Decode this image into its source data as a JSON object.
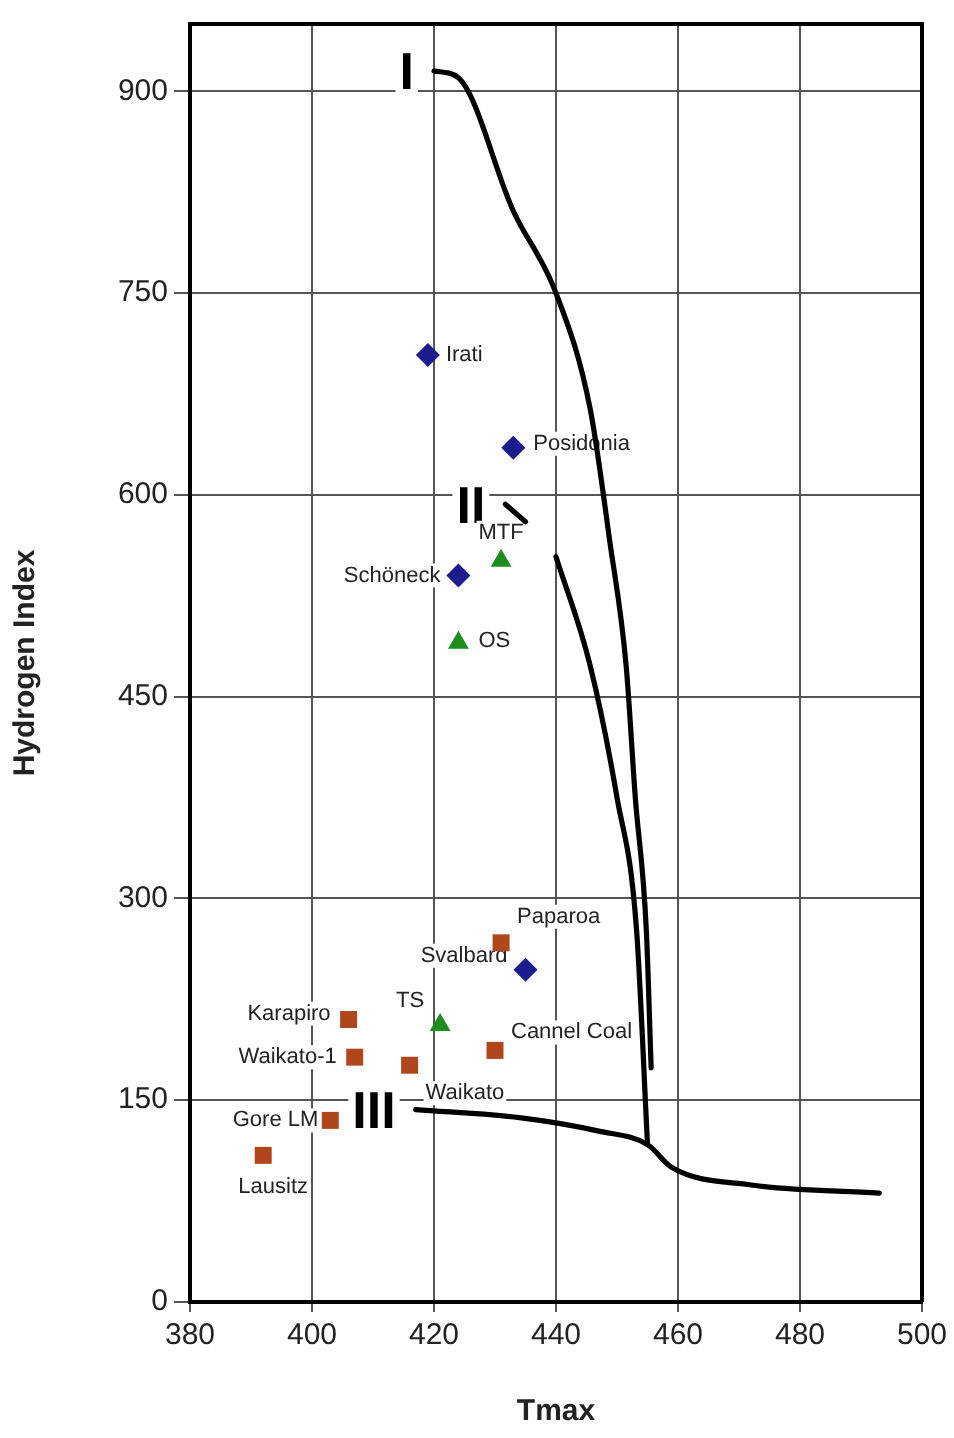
{
  "chart_data": {
    "type": "scatter",
    "xlabel": "Tmax",
    "ylabel": "Hydrogen Index",
    "xlim": [
      380,
      500
    ],
    "xticks": [
      380,
      400,
      420,
      440,
      460,
      480,
      500
    ],
    "ylim": [
      0,
      950
    ],
    "yticks": [
      0,
      150,
      300,
      450,
      600,
      750,
      900
    ],
    "grid": true,
    "legend": false,
    "series": [
      {
        "type": "scatter",
        "marker": "diamond",
        "color": "#1c1c8e",
        "x": [
          419,
          433,
          424,
          435
        ],
        "values": [
          704,
          635,
          540,
          247
        ]
      },
      {
        "type": "scatter",
        "marker": "triangle",
        "color": "#1e8c1e",
        "x": [
          431,
          424,
          421
        ],
        "values": [
          551,
          490,
          206
        ]
      },
      {
        "type": "scatter",
        "marker": "square",
        "color": "#b0461c",
        "x": [
          431,
          406,
          407,
          416,
          430,
          403,
          392
        ],
        "values": [
          267,
          210,
          182,
          176,
          187,
          135,
          109
        ]
      },
      {
        "type": "line",
        "marker": "none",
        "line_style": "solid",
        "color": "#000000",
        "x": [
          420,
          424,
          433,
          440,
          445.6,
          448.8,
          451.5,
          453,
          454.8,
          455.6
        ],
        "values": [
          915,
          910,
          811,
          750,
          664,
          566,
          473,
          375,
          277,
          174
        ]
      },
      {
        "type": "line",
        "marker": "none",
        "line_style": "solid",
        "color": "#000000",
        "x": [
          431.7,
          435,
          437,
          440,
          445.6,
          450,
          453.2,
          455
        ],
        "values": [
          593,
          580,
          null,
          554,
          473,
          375,
          277,
          117
        ]
      },
      {
        "type": "line",
        "marker": "none",
        "line_style": "solid",
        "color": "#000000",
        "x": [
          417,
          434,
          447,
          455,
          459,
          472,
          493
        ],
        "values": [
          143,
          137,
          127,
          117,
          100,
          87,
          81
        ]
      }
    ],
    "annotations": [
      {
        "text": "Irati",
        "x": 419,
        "y": 704
      },
      {
        "text": "Posidonia",
        "x": 433,
        "y": 635
      },
      {
        "text": "Schöneck",
        "x": 424,
        "y": 540
      },
      {
        "text": "Svalbard",
        "x": 435,
        "y": 247
      },
      {
        "text": "MTF",
        "x": 431,
        "y": 551
      },
      {
        "text": "OS",
        "x": 424,
        "y": 490
      },
      {
        "text": "TS",
        "x": 421,
        "y": 206
      },
      {
        "text": "Paparoa",
        "x": 431,
        "y": 267
      },
      {
        "text": "Karapiro",
        "x": 406,
        "y": 210
      },
      {
        "text": "Waikato-1",
        "x": 407,
        "y": 182
      },
      {
        "text": "Waikato",
        "x": 416,
        "y": 176
      },
      {
        "text": "Cannel Coal",
        "x": 430,
        "y": 187
      },
      {
        "text": "Gore LM",
        "x": 403,
        "y": 135
      },
      {
        "text": "Lausitz",
        "x": 392,
        "y": 109
      },
      "I",
      "II",
      "III"
    ]
  }
}
